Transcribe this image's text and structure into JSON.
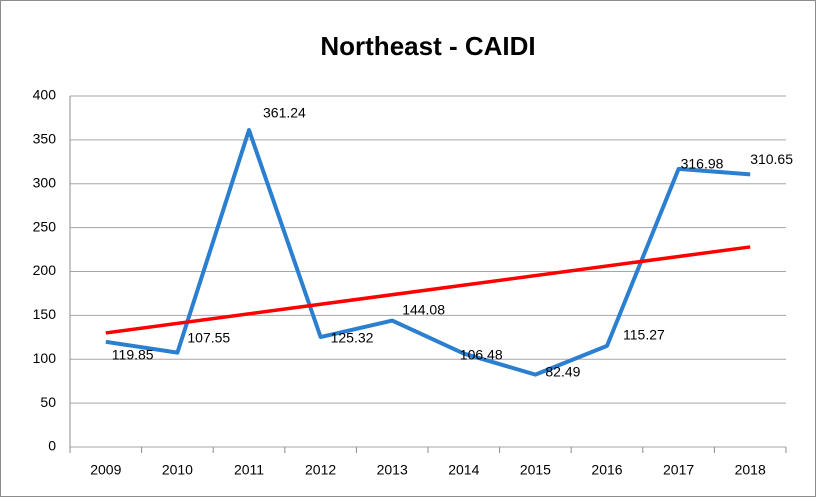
{
  "chart_data": {
    "type": "line",
    "title": "Northeast - CAIDI",
    "categories": [
      "2009",
      "2010",
      "2011",
      "2012",
      "2013",
      "2014",
      "2015",
      "2016",
      "2017",
      "2018"
    ],
    "series": [
      {
        "color": "#2b7fd1",
        "values": [
          119.85,
          107.55,
          361.24,
          125.32,
          144.08,
          106.48,
          82.49,
          115.27,
          316.98,
          310.65
        ]
      }
    ],
    "trendline": {
      "color": "#ff0000",
      "values": [
        130,
        228
      ]
    },
    "ylim": [
      0,
      400
    ],
    "yticks": [
      0,
      50,
      100,
      150,
      200,
      250,
      300,
      350,
      400
    ],
    "grid": true
  }
}
